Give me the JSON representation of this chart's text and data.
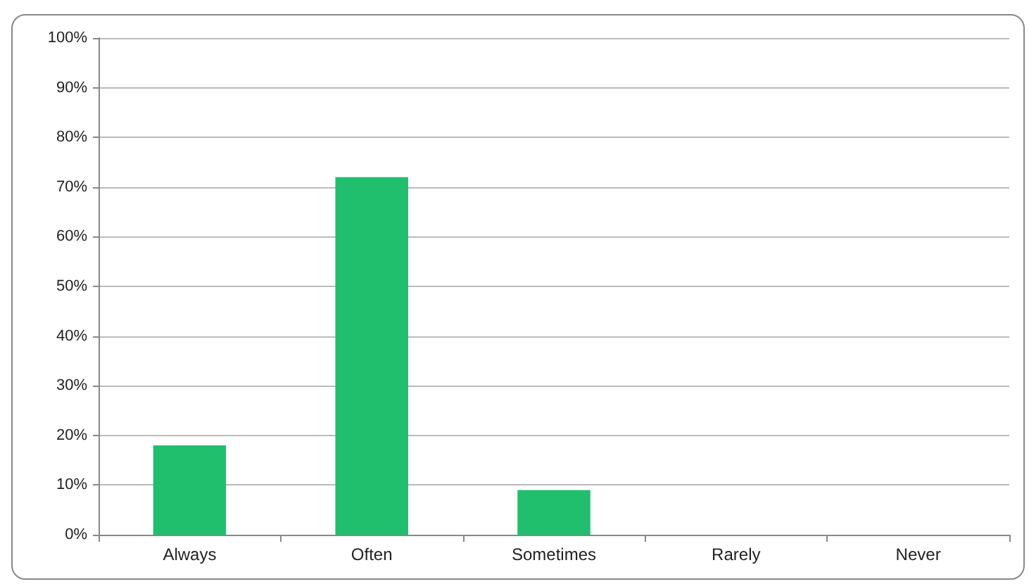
{
  "chart_data": {
    "type": "bar",
    "categories": [
      "Always",
      "Often",
      "Sometimes",
      "Rarely",
      "Never"
    ],
    "values": [
      18,
      72,
      9,
      0,
      0
    ],
    "color": "#1fbf6e",
    "ylim": [
      0,
      100
    ],
    "yticks": [
      {
        "value": 0,
        "label": "0%"
      },
      {
        "value": 10,
        "label": "10%"
      },
      {
        "value": 20,
        "label": "20%"
      },
      {
        "value": 30,
        "label": "30%"
      },
      {
        "value": 40,
        "label": "40%"
      },
      {
        "value": 50,
        "label": "50%"
      },
      {
        "value": 60,
        "label": "60%"
      },
      {
        "value": 70,
        "label": "70%"
      },
      {
        "value": 80,
        "label": "80%"
      },
      {
        "value": 90,
        "label": "90%"
      },
      {
        "value": 100,
        "label": "100%"
      }
    ],
    "grid": "y"
  }
}
